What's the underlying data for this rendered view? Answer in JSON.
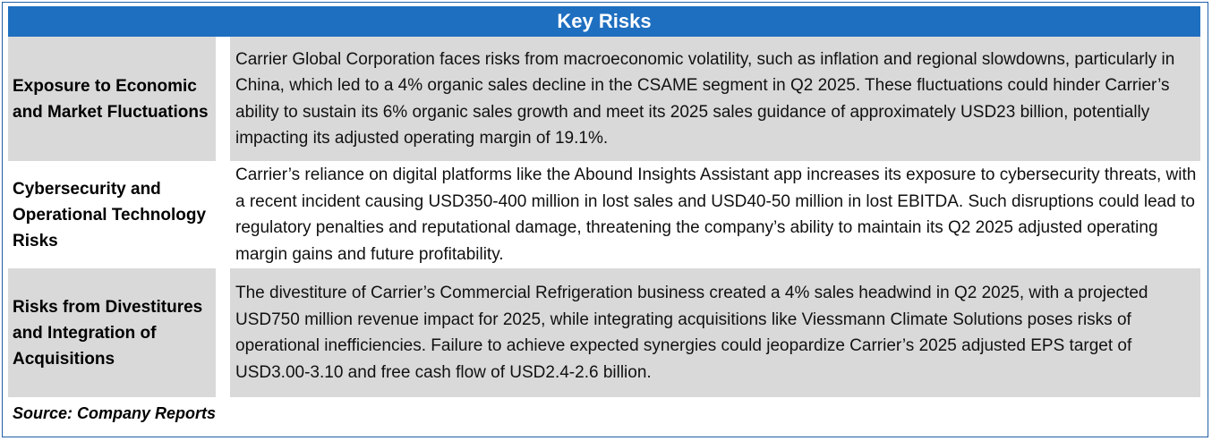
{
  "table": {
    "title": "Key Risks",
    "rows": [
      {
        "label": "Exposure to Economic and Market Fluctuations",
        "text": "Carrier Global Corporation faces risks from macroeconomic volatility, such as inflation and regional slowdowns, particularly in China, which led to a 4% organic sales decline in the CSAME segment in Q2 2025. These fluctuations could hinder Carrier’s ability to sustain its 6% organic sales growth and meet its 2025 sales guidance of approximately USD23 billion, potentially impacting its adjusted operating margin of 19.1%."
      },
      {
        "label": "Cybersecurity and Operational Technology Risks",
        "text": "Carrier’s reliance on digital platforms like the Abound Insights Assistant app increases its exposure to cybersecurity threats, with a recent incident causing USD350-400 million in lost sales and USD40-50 million in lost EBITDA. Such disruptions could lead to regulatory penalties and reputational damage, threatening the company’s ability to maintain its Q2 2025 adjusted operating margin gains and future profitability."
      },
      {
        "label": "Risks from Divestitures and Integration of Acquisitions",
        "text": "The divestiture of Carrier’s Commercial Refrigeration business created a 4% sales headwind in Q2 2025, with a projected USD750 million revenue impact for 2025, while integrating acquisitions like Viessmann Climate Solutions poses risks of operational inefficiencies. Failure to achieve expected synergies could jeopardize Carrier’s 2025 adjusted EPS target of USD3.00-3.10 and free cash flow of USD2.4-2.6 billion."
      }
    ],
    "source": "Source: Company Reports"
  },
  "colors": {
    "header_bg": "#1e6fc0",
    "row_shade": "#d9d9d9",
    "border": "#1f5fa8"
  }
}
